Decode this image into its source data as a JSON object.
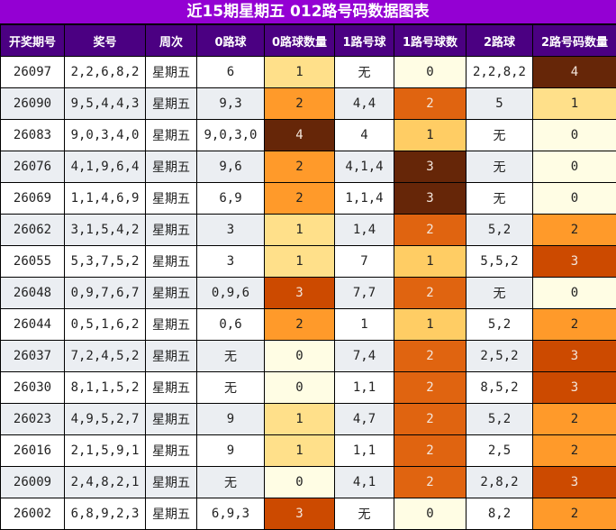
{
  "title": "近15期星期五 012路号码数据图表",
  "headers": [
    "开奖期号",
    "奖号",
    "周次",
    "0路球",
    "0路球数量",
    "1路号球",
    "1路号球数",
    "2路球",
    "2路号码数量"
  ],
  "colors": {
    "title_bg": "#9400d3",
    "header_bg": "#4b0082",
    "row_alt_bg": "#ebeef2",
    "count0_scale": {
      "0": "#fffde4",
      "1": "#ffe08a",
      "2": "#ff9a2a",
      "3": "#cc4a00",
      "4": "#662608"
    },
    "count1_scale": {
      "0": "#fffde4",
      "1": "#ffcd64",
      "2": "#e06410",
      "3": "#662608"
    },
    "count2_scale": {
      "0": "#fffde4",
      "1": "#ffe08a",
      "2": "#ff9a2a",
      "3": "#cc4a00",
      "4": "#662608"
    }
  },
  "rows": [
    {
      "issue": "26097",
      "numbers": "2,2,6,8,2",
      "weekday": "星期五",
      "road0": "6",
      "road0_count": "1",
      "road1": "无",
      "road1_count": "0",
      "road2": "2,2,8,2",
      "road2_count": "4"
    },
    {
      "issue": "26090",
      "numbers": "9,5,4,4,3",
      "weekday": "星期五",
      "road0": "9,3",
      "road0_count": "2",
      "road1": "4,4",
      "road1_count": "2",
      "road2": "5",
      "road2_count": "1"
    },
    {
      "issue": "26083",
      "numbers": "9,0,3,4,0",
      "weekday": "星期五",
      "road0": "9,0,3,0",
      "road0_count": "4",
      "road1": "4",
      "road1_count": "1",
      "road2": "无",
      "road2_count": "0"
    },
    {
      "issue": "26076",
      "numbers": "4,1,9,6,4",
      "weekday": "星期五",
      "road0": "9,6",
      "road0_count": "2",
      "road1": "4,1,4",
      "road1_count": "3",
      "road2": "无",
      "road2_count": "0"
    },
    {
      "issue": "26069",
      "numbers": "1,1,4,6,9",
      "weekday": "星期五",
      "road0": "6,9",
      "road0_count": "2",
      "road1": "1,1,4",
      "road1_count": "3",
      "road2": "无",
      "road2_count": "0"
    },
    {
      "issue": "26062",
      "numbers": "3,1,5,4,2",
      "weekday": "星期五",
      "road0": "3",
      "road0_count": "1",
      "road1": "1,4",
      "road1_count": "2",
      "road2": "5,2",
      "road2_count": "2"
    },
    {
      "issue": "26055",
      "numbers": "5,3,7,5,2",
      "weekday": "星期五",
      "road0": "3",
      "road0_count": "1",
      "road1": "7",
      "road1_count": "1",
      "road2": "5,5,2",
      "road2_count": "3"
    },
    {
      "issue": "26048",
      "numbers": "0,9,7,6,7",
      "weekday": "星期五",
      "road0": "0,9,6",
      "road0_count": "3",
      "road1": "7,7",
      "road1_count": "2",
      "road2": "无",
      "road2_count": "0"
    },
    {
      "issue": "26044",
      "numbers": "0,5,1,6,2",
      "weekday": "星期五",
      "road0": "0,6",
      "road0_count": "2",
      "road1": "1",
      "road1_count": "1",
      "road2": "5,2",
      "road2_count": "2"
    },
    {
      "issue": "26037",
      "numbers": "7,2,4,5,2",
      "weekday": "星期五",
      "road0": "无",
      "road0_count": "0",
      "road1": "7,4",
      "road1_count": "2",
      "road2": "2,5,2",
      "road2_count": "3"
    },
    {
      "issue": "26030",
      "numbers": "8,1,1,5,2",
      "weekday": "星期五",
      "road0": "无",
      "road0_count": "0",
      "road1": "1,1",
      "road1_count": "2",
      "road2": "8,5,2",
      "road2_count": "3"
    },
    {
      "issue": "26023",
      "numbers": "4,9,5,2,7",
      "weekday": "星期五",
      "road0": "9",
      "road0_count": "1",
      "road1": "4,7",
      "road1_count": "2",
      "road2": "5,2",
      "road2_count": "2"
    },
    {
      "issue": "26016",
      "numbers": "2,1,5,9,1",
      "weekday": "星期五",
      "road0": "9",
      "road0_count": "1",
      "road1": "1,1",
      "road1_count": "2",
      "road2": "2,5",
      "road2_count": "2"
    },
    {
      "issue": "26009",
      "numbers": "2,4,8,2,1",
      "weekday": "星期五",
      "road0": "无",
      "road0_count": "0",
      "road1": "4,1",
      "road1_count": "2",
      "road2": "2,8,2",
      "road2_count": "3"
    },
    {
      "issue": "26002",
      "numbers": "6,8,9,2,3",
      "weekday": "星期五",
      "road0": "6,9,3",
      "road0_count": "3",
      "road1": "无",
      "road1_count": "0",
      "road2": "8,2",
      "road2_count": "2"
    }
  ]
}
